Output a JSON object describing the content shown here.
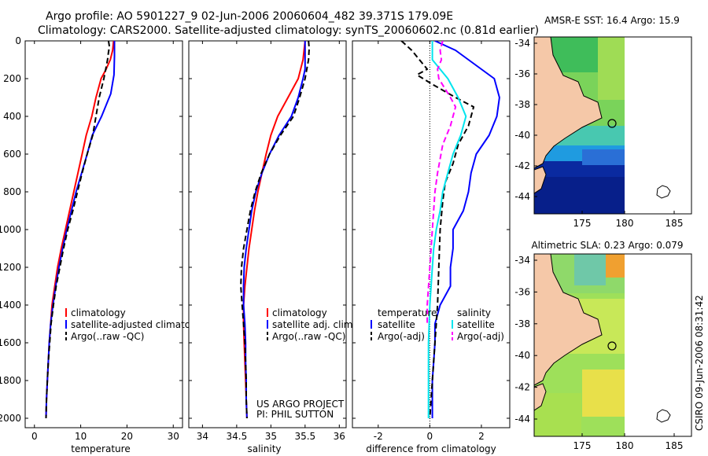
{
  "header": {
    "line1": "Argo profile: AO 5901227_9 02-Jun-2006 20060604_482 39.371S 179.09E",
    "line2": "Climatology: CARS2000. Satellite-adjusted climatology: synTS_20060602.nc (0.81d earlier)"
  },
  "side_label": "CSIRO 09-Jun-2006 08:31:42",
  "chart_data": [
    {
      "id": "temp",
      "type": "line",
      "xlabel": "temperature",
      "ylabel": "",
      "xlim": [
        -2,
        32
      ],
      "ylim": [
        0,
        2050
      ],
      "y_reversed": true,
      "xticks": [
        0,
        10,
        20,
        30
      ],
      "yticks": [
        0,
        200,
        400,
        600,
        800,
        1000,
        1200,
        1400,
        1600,
        1800,
        2000
      ],
      "legend": {
        "position": "lower-right",
        "entries": [
          "climatology",
          "satellite-adjusted climatology",
          "Argo(..raw -QC)"
        ]
      },
      "series": [
        {
          "name": "climatology",
          "color": "#ff0000",
          "style": "solid",
          "width": 2,
          "points": [
            [
              17.1,
              0
            ],
            [
              16.9,
              50
            ],
            [
              16.4,
              100
            ],
            [
              15.5,
              150
            ],
            [
              14.4,
              200
            ],
            [
              13.3,
              300
            ],
            [
              12.4,
              400
            ],
            [
              11.2,
              500
            ],
            [
              10.3,
              600
            ],
            [
              9.4,
              700
            ],
            [
              8.5,
              800
            ],
            [
              7.6,
              900
            ],
            [
              6.7,
              1000
            ],
            [
              5.8,
              1100
            ],
            [
              5,
              1200
            ],
            [
              4.4,
              1300
            ],
            [
              3.8,
              1400
            ],
            [
              3.5,
              1500
            ],
            [
              3.2,
              1600
            ],
            [
              3,
              1700
            ],
            [
              2.8,
              1800
            ],
            [
              2.6,
              1900
            ],
            [
              2.5,
              2000
            ]
          ]
        },
        {
          "name": "satellite-adjusted climatology",
          "color": "#0000ff",
          "style": "solid",
          "width": 2,
          "points": [
            [
              17.3,
              0
            ],
            [
              17.3,
              80
            ],
            [
              17.2,
              180
            ],
            [
              16.5,
              280
            ],
            [
              14.5,
              400
            ],
            [
              12.5,
              500
            ],
            [
              11.4,
              600
            ],
            [
              10.2,
              700
            ],
            [
              9,
              800
            ],
            [
              8,
              900
            ],
            [
              7,
              1000
            ],
            [
              6.1,
              1100
            ],
            [
              5.3,
              1200
            ],
            [
              4.6,
              1300
            ],
            [
              4,
              1400
            ],
            [
              3.5,
              1500
            ],
            [
              3.2,
              1600
            ],
            [
              3,
              1700
            ],
            [
              2.8,
              1800
            ],
            [
              2.6,
              1900
            ],
            [
              2.5,
              2000
            ]
          ]
        },
        {
          "name": "Argo(..raw -QC)",
          "color": "#000000",
          "style": "dashed",
          "width": 2,
          "points": [
            [
              16,
              0
            ],
            [
              16.2,
              30
            ],
            [
              16,
              60
            ],
            [
              15.8,
              100
            ],
            [
              15.4,
              150
            ],
            [
              15,
              200
            ],
            [
              14,
              300
            ],
            [
              13.3,
              400
            ],
            [
              12.6,
              500
            ],
            [
              11.4,
              600
            ],
            [
              10.3,
              700
            ],
            [
              9.3,
              800
            ],
            [
              8.3,
              900
            ],
            [
              7.2,
              1000
            ],
            [
              6.3,
              1100
            ],
            [
              5.5,
              1200
            ],
            [
              4.7,
              1300
            ],
            [
              4.1,
              1400
            ],
            [
              3.6,
              1500
            ],
            [
              3.3,
              1600
            ],
            [
              3,
              1700
            ],
            [
              2.8,
              1800
            ],
            [
              2.6,
              1900
            ],
            [
              2.5,
              2000
            ]
          ]
        }
      ]
    },
    {
      "id": "sal",
      "type": "line",
      "xlabel": "salinity",
      "ylabel": "",
      "xlim": [
        33.8,
        36.1
      ],
      "ylim": [
        0,
        2050
      ],
      "y_reversed": true,
      "xticks": [
        34,
        34.5,
        35,
        35.5,
        36
      ],
      "legend": {
        "position": "lower-right",
        "entries": [
          "climatology",
          "satellite adj. clim.",
          "Argo(..raw -QC)"
        ]
      },
      "annotation": [
        "US ARGO PROJECT",
        "PI: PHIL SUTTON"
      ],
      "series": [
        {
          "name": "climatology",
          "color": "#ff0000",
          "style": "solid",
          "width": 2,
          "points": [
            [
              35.5,
              0
            ],
            [
              35.47,
              100
            ],
            [
              35.4,
              200
            ],
            [
              35.25,
              300
            ],
            [
              35.1,
              400
            ],
            [
              35,
              500
            ],
            [
              34.93,
              600
            ],
            [
              34.87,
              700
            ],
            [
              34.81,
              800
            ],
            [
              34.76,
              900
            ],
            [
              34.72,
              1000
            ],
            [
              34.68,
              1100
            ],
            [
              34.65,
              1200
            ],
            [
              34.62,
              1300
            ],
            [
              34.6,
              1400
            ],
            [
              34.6,
              1500
            ],
            [
              34.61,
              1600
            ],
            [
              34.62,
              1700
            ],
            [
              34.63,
              1800
            ],
            [
              34.64,
              1900
            ],
            [
              34.65,
              2000
            ]
          ]
        },
        {
          "name": "satellite adj. clim.",
          "color": "#0000ff",
          "style": "solid",
          "width": 2,
          "points": [
            [
              35.5,
              0
            ],
            [
              35.5,
              80
            ],
            [
              35.5,
              150
            ],
            [
              35.47,
              200
            ],
            [
              35.4,
              300
            ],
            [
              35.3,
              400
            ],
            [
              35.12,
              500
            ],
            [
              34.98,
              600
            ],
            [
              34.87,
              700
            ],
            [
              34.78,
              800
            ],
            [
              34.72,
              900
            ],
            [
              34.68,
              1000
            ],
            [
              34.64,
              1100
            ],
            [
              34.61,
              1200
            ],
            [
              34.6,
              1300
            ],
            [
              34.6,
              1400
            ],
            [
              34.62,
              1500
            ],
            [
              34.63,
              1600
            ],
            [
              34.63,
              1700
            ],
            [
              34.64,
              1800
            ],
            [
              34.64,
              1900
            ],
            [
              34.65,
              2000
            ]
          ]
        },
        {
          "name": "Argo(..raw -QC)",
          "color": "#000000",
          "style": "dashed",
          "width": 2,
          "points": [
            [
              35.55,
              0
            ],
            [
              35.56,
              40
            ],
            [
              35.55,
              100
            ],
            [
              35.5,
              200
            ],
            [
              35.42,
              300
            ],
            [
              35.33,
              400
            ],
            [
              35.14,
              500
            ],
            [
              34.98,
              600
            ],
            [
              34.86,
              700
            ],
            [
              34.77,
              800
            ],
            [
              34.7,
              900
            ],
            [
              34.65,
              1000
            ],
            [
              34.6,
              1100
            ],
            [
              34.57,
              1200
            ],
            [
              34.56,
              1300
            ],
            [
              34.58,
              1400
            ],
            [
              34.6,
              1500
            ],
            [
              34.62,
              1600
            ],
            [
              34.63,
              1700
            ],
            [
              34.64,
              1800
            ],
            [
              34.64,
              1900
            ],
            [
              34.65,
              2000
            ]
          ]
        }
      ]
    },
    {
      "id": "diff",
      "type": "line",
      "xlabel": "difference from climatology",
      "ylabel": "",
      "xlim": [
        -3,
        3.1
      ],
      "ylim": [
        0,
        2050
      ],
      "y_reversed": true,
      "xticks": [
        -2,
        0,
        2
      ],
      "legend": {
        "position": "lower-center",
        "entries": [
          "temperature",
          "satellite",
          "Argo(-adj)",
          "salinity",
          "satellite",
          "Argo(-adj)"
        ]
      },
      "series": [
        {
          "name": "temperature satellite",
          "color": "#0000ff",
          "style": "solid",
          "width": 2,
          "points": [
            [
              0.2,
              0
            ],
            [
              1,
              50
            ],
            [
              2,
              150
            ],
            [
              2.5,
              200
            ],
            [
              2.7,
              300
            ],
            [
              2.6,
              400
            ],
            [
              2.3,
              500
            ],
            [
              1.8,
              600
            ],
            [
              1.6,
              700
            ],
            [
              1.5,
              800
            ],
            [
              1.3,
              900
            ],
            [
              0.9,
              1000
            ],
            [
              0.9,
              1100
            ],
            [
              0.8,
              1200
            ],
            [
              0.8,
              1300
            ],
            [
              0.4,
              1400
            ],
            [
              0.2,
              1500
            ],
            [
              0.2,
              1600
            ],
            [
              0.15,
              1700
            ],
            [
              0.1,
              1800
            ],
            [
              0.1,
              1900
            ],
            [
              0.1,
              2000
            ]
          ]
        },
        {
          "name": "temperature Argo(-adj)",
          "color": "#000000",
          "style": "dashed",
          "width": 2,
          "points": [
            [
              -1.1,
              0
            ],
            [
              -0.7,
              50
            ],
            [
              -0.4,
              100
            ],
            [
              -0.1,
              150
            ],
            [
              -0.5,
              180
            ],
            [
              0.1,
              230
            ],
            [
              1,
              300
            ],
            [
              1.7,
              350
            ],
            [
              1.5,
              450
            ],
            [
              1.1,
              550
            ],
            [
              0.9,
              650
            ],
            [
              0.6,
              750
            ],
            [
              0.5,
              850
            ],
            [
              0.4,
              1000
            ],
            [
              0.35,
              1200
            ],
            [
              0.3,
              1400
            ],
            [
              0.2,
              1600
            ],
            [
              0.1,
              1800
            ],
            [
              0,
              2000
            ]
          ]
        },
        {
          "name": "salinity satellite",
          "color": "#00e5ee",
          "style": "solid",
          "width": 2,
          "points": [
            [
              0.1,
              0
            ],
            [
              0.1,
              100
            ],
            [
              0.7,
              200
            ],
            [
              1.1,
              300
            ],
            [
              1.4,
              400
            ],
            [
              1.2,
              500
            ],
            [
              0.9,
              600
            ],
            [
              0.7,
              700
            ],
            [
              0.5,
              800
            ],
            [
              0.4,
              900
            ],
            [
              0.25,
              1000
            ],
            [
              0.15,
              1100
            ],
            [
              0.1,
              1200
            ],
            [
              0,
              1400
            ],
            [
              -0.05,
              1600
            ],
            [
              -0.05,
              1800
            ],
            [
              -0.05,
              2000
            ]
          ]
        },
        {
          "name": "salinity Argo(-adj)",
          "color": "#ff00ff",
          "style": "dashed",
          "width": 2,
          "points": [
            [
              0.5,
              0
            ],
            [
              0.4,
              50
            ],
            [
              0.45,
              100
            ],
            [
              0.3,
              150
            ],
            [
              0.35,
              200
            ],
            [
              0.8,
              300
            ],
            [
              1,
              350
            ],
            [
              0.8,
              450
            ],
            [
              0.5,
              550
            ],
            [
              0.3,
              700
            ],
            [
              0.2,
              800
            ],
            [
              0.1,
              1000
            ],
            [
              0,
              1200
            ],
            [
              -0.1,
              1400
            ],
            [
              -0.1,
              1500
            ]
          ]
        }
      ]
    }
  ],
  "maps": [
    {
      "id": "sst",
      "title": "AMSR-E SST: 16.4  Argo: 15.9",
      "xticks": [
        "175",
        "180",
        "185"
      ],
      "yticks": [
        "-34",
        "-36",
        "-38",
        "-40",
        "-42",
        "-44"
      ]
    },
    {
      "id": "sla",
      "title": "Altimetric SLA: 0.23  Argo: 0.079",
      "xticks": [
        "175",
        "180",
        "185"
      ],
      "yticks": [
        "-34",
        "-36",
        "-38",
        "-40",
        "-42",
        "-44"
      ]
    }
  ]
}
